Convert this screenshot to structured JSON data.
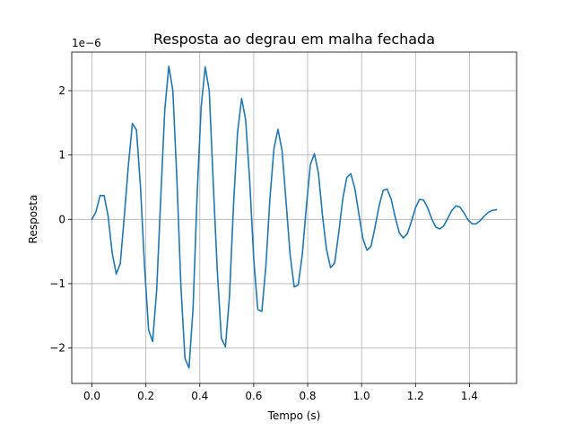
{
  "chart_data": {
    "type": "line",
    "title": "Resposta ao degrau em malha fechada",
    "xlabel": "Tempo (s)",
    "ylabel": "Resposta",
    "y_offset_label": "1e−6",
    "xlim": [
      -0.075,
      1.575
    ],
    "ylim": [
      -2.55,
      2.6
    ],
    "grid": true,
    "x_ticks": [
      0.0,
      0.2,
      0.4,
      0.6,
      0.8,
      1.0,
      1.2,
      1.4
    ],
    "x_tick_labels": [
      "0.0",
      "0.2",
      "0.4",
      "0.6",
      "0.8",
      "1.0",
      "1.2",
      "1.4"
    ],
    "y_ticks": [
      -2,
      -1,
      0,
      1,
      2
    ],
    "y_tick_labels": [
      "−2",
      "−1",
      "0",
      "1",
      "2"
    ],
    "line_color": "#1f77b4",
    "series": [
      {
        "x": [
          0.0,
          0.015,
          0.03,
          0.045,
          0.06,
          0.075,
          0.09,
          0.105,
          0.12,
          0.135,
          0.15,
          0.165,
          0.18,
          0.195,
          0.21,
          0.225,
          0.24,
          0.255,
          0.27,
          0.285,
          0.3,
          0.315,
          0.33,
          0.345,
          0.36,
          0.375,
          0.39,
          0.405,
          0.42,
          0.435,
          0.45,
          0.465,
          0.48,
          0.495,
          0.51,
          0.525,
          0.54,
          0.555,
          0.57,
          0.585,
          0.6,
          0.615,
          0.63,
          0.645,
          0.66,
          0.675,
          0.69,
          0.705,
          0.72,
          0.735,
          0.75,
          0.765,
          0.78,
          0.795,
          0.81,
          0.825,
          0.84,
          0.855,
          0.87,
          0.885,
          0.9,
          0.915,
          0.93,
          0.945,
          0.96,
          0.975,
          0.99,
          1.005,
          1.02,
          1.035,
          1.05,
          1.065,
          1.08,
          1.095,
          1.11,
          1.125,
          1.14,
          1.155,
          1.17,
          1.185,
          1.2,
          1.215,
          1.23,
          1.245,
          1.26,
          1.275,
          1.29,
          1.305,
          1.32,
          1.335,
          1.35,
          1.365,
          1.38,
          1.395,
          1.41,
          1.425,
          1.44,
          1.455,
          1.47,
          1.485,
          1.5
        ],
        "y": [
          0.0,
          0.12,
          0.37,
          0.37,
          0.05,
          -0.52,
          -0.85,
          -0.69,
          0.05,
          0.84,
          1.49,
          1.39,
          0.5,
          -0.73,
          -1.72,
          -1.9,
          -1.1,
          0.32,
          1.7,
          2.38,
          2.0,
          0.62,
          -1.05,
          -2.16,
          -2.31,
          -1.38,
          0.38,
          1.75,
          2.37,
          2.0,
          0.55,
          -0.81,
          -1.85,
          -1.98,
          -1.2,
          0.22,
          1.35,
          1.88,
          1.55,
          0.6,
          -0.62,
          -1.4,
          -1.43,
          -0.73,
          0.32,
          1.1,
          1.4,
          1.07,
          0.27,
          -0.55,
          -1.05,
          -1.02,
          -0.55,
          0.19,
          0.85,
          1.02,
          0.72,
          0.06,
          -0.47,
          -0.75,
          -0.68,
          -0.22,
          0.31,
          0.65,
          0.71,
          0.48,
          0.08,
          -0.3,
          -0.48,
          -0.42,
          -0.12,
          0.21,
          0.45,
          0.47,
          0.31,
          0.03,
          -0.21,
          -0.29,
          -0.22,
          -0.03,
          0.18,
          0.31,
          0.3,
          0.18,
          0.01,
          -0.12,
          -0.15,
          -0.1,
          0.02,
          0.14,
          0.21,
          0.19,
          0.1,
          -0.01,
          -0.07,
          -0.07,
          -0.02,
          0.05,
          0.11,
          0.14,
          0.15
        ]
      }
    ]
  }
}
